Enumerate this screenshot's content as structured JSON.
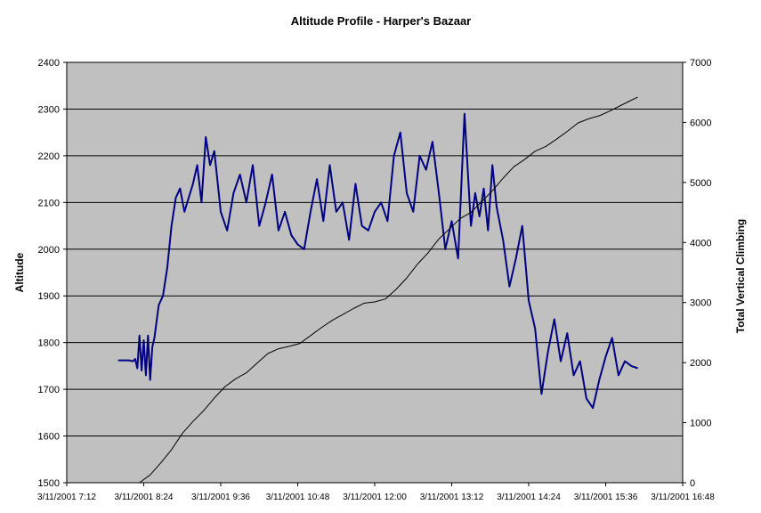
{
  "chart_data": {
    "type": "line",
    "title": "Altitude Profile - Harper's Bazaar",
    "ylabel": "Altitude",
    "y2label": "Total Vertical Climbing",
    "ylim": [
      1500,
      2400
    ],
    "y2lim": [
      0,
      7000
    ],
    "xlim": [
      "3/11/2001 7:12",
      "3/11/2001 16:48"
    ],
    "x_ticks": [
      "3/11/2001 7:12",
      "3/11/2001 8:24",
      "3/11/2001 9:36",
      "3/11/2001 10:48",
      "3/11/2001 12:00",
      "3/11/2001 13:12",
      "3/11/2001 14:24",
      "3/11/2001 15:36",
      "3/11/2001 16:48"
    ],
    "y_ticks": [
      1500,
      1600,
      1700,
      1800,
      1900,
      2000,
      2100,
      2200,
      2300,
      2400
    ],
    "y2_ticks": [
      0,
      1000,
      2000,
      3000,
      4000,
      5000,
      6000,
      7000
    ],
    "grid": true,
    "legend": "none",
    "colors": {
      "plot_bg": "#c0c0c0",
      "altitude": "#000080",
      "climbing": "#000000",
      "grid": "#000000"
    },
    "series": [
      {
        "axis": "left",
        "x": [
          "3/11/2001 8:00",
          "3/11/2001 8:10",
          "3/11/2001 8:14",
          "3/11/2001 8:16",
          "3/11/2001 8:18",
          "3/11/2001 8:20",
          "3/11/2001 8:22",
          "3/11/2001 8:24",
          "3/11/2001 8:26",
          "3/11/2001 8:28",
          "3/11/2001 8:30",
          "3/11/2001 8:32",
          "3/11/2001 8:34",
          "3/11/2001 8:38",
          "3/11/2001 8:42",
          "3/11/2001 8:46",
          "3/11/2001 8:50",
          "3/11/2001 8:54",
          "3/11/2001 8:58",
          "3/11/2001 9:02",
          "3/11/2001 9:06",
          "3/11/2001 9:10",
          "3/11/2001 9:14",
          "3/11/2001 9:18",
          "3/11/2001 9:22",
          "3/11/2001 9:26",
          "3/11/2001 9:30",
          "3/11/2001 9:36",
          "3/11/2001 9:42",
          "3/11/2001 9:48",
          "3/11/2001 9:54",
          "3/11/2001 10:00",
          "3/11/2001 10:06",
          "3/11/2001 10:12",
          "3/11/2001 10:18",
          "3/11/2001 10:24",
          "3/11/2001 10:30",
          "3/11/2001 10:36",
          "3/11/2001 10:42",
          "3/11/2001 10:48",
          "3/11/2001 10:54",
          "3/11/2001 11:00",
          "3/11/2001 11:06",
          "3/11/2001 11:12",
          "3/11/2001 11:18",
          "3/11/2001 11:24",
          "3/11/2001 11:30",
          "3/11/2001 11:36",
          "3/11/2001 11:42",
          "3/11/2001 11:48",
          "3/11/2001 11:54",
          "3/11/2001 12:00",
          "3/11/2001 12:06",
          "3/11/2001 12:12",
          "3/11/2001 12:18",
          "3/11/2001 12:24",
          "3/11/2001 12:30",
          "3/11/2001 12:36",
          "3/11/2001 12:42",
          "3/11/2001 12:48",
          "3/11/2001 12:54",
          "3/11/2001 13:00",
          "3/11/2001 13:06",
          "3/11/2001 13:12",
          "3/11/2001 13:18",
          "3/11/2001 13:24",
          "3/11/2001 13:30",
          "3/11/2001 13:34",
          "3/11/2001 13:38",
          "3/11/2001 13:42",
          "3/11/2001 13:46",
          "3/11/2001 13:50",
          "3/11/2001 13:54",
          "3/11/2001 14:00",
          "3/11/2001 14:06",
          "3/11/2001 14:12",
          "3/11/2001 14:18",
          "3/11/2001 14:24",
          "3/11/2001 14:30",
          "3/11/2001 14:36",
          "3/11/2001 14:42",
          "3/11/2001 14:48",
          "3/11/2001 14:54",
          "3/11/2001 15:00",
          "3/11/2001 15:06",
          "3/11/2001 15:12",
          "3/11/2001 15:18",
          "3/11/2001 15:24",
          "3/11/2001 15:30",
          "3/11/2001 15:36",
          "3/11/2001 15:42",
          "3/11/2001 15:48",
          "3/11/2001 15:54",
          "3/11/2001 16:00",
          "3/11/2001 16:06"
        ],
        "values": [
          1762,
          1762,
          1760,
          1765,
          1745,
          1815,
          1740,
          1805,
          1730,
          1815,
          1720,
          1790,
          1810,
          1880,
          1900,
          1960,
          2050,
          2110,
          2130,
          2080,
          2110,
          2140,
          2180,
          2100,
          2240,
          2180,
          2210,
          2080,
          2040,
          2120,
          2160,
          2100,
          2180,
          2050,
          2100,
          2160,
          2040,
          2080,
          2030,
          2010,
          2000,
          2080,
          2150,
          2060,
          2180,
          2080,
          2100,
          2020,
          2140,
          2050,
          2040,
          2080,
          2100,
          2060,
          2200,
          2250,
          2120,
          2080,
          2200,
          2170,
          2230,
          2120,
          2000,
          2060,
          1980,
          2290,
          2050,
          2120,
          2070,
          2130,
          2040,
          2180,
          2090,
          2020,
          1920,
          1980,
          2050,
          1890,
          1830,
          1690,
          1780,
          1850,
          1760,
          1820,
          1730,
          1760,
          1680,
          1660,
          1720,
          1770,
          1810,
          1730,
          1760,
          1750,
          1745
        ]
      },
      {
        "axis": "right",
        "x": [
          "3/11/2001 8:20",
          "3/11/2001 8:30",
          "3/11/2001 8:40",
          "3/11/2001 8:50",
          "3/11/2001 9:00",
          "3/11/2001 9:10",
          "3/11/2001 9:20",
          "3/11/2001 9:30",
          "3/11/2001 9:40",
          "3/11/2001 9:50",
          "3/11/2001 10:00",
          "3/11/2001 10:10",
          "3/11/2001 10:20",
          "3/11/2001 10:30",
          "3/11/2001 10:40",
          "3/11/2001 10:50",
          "3/11/2001 11:00",
          "3/11/2001 11:10",
          "3/11/2001 11:20",
          "3/11/2001 11:30",
          "3/11/2001 11:40",
          "3/11/2001 11:50",
          "3/11/2001 12:00",
          "3/11/2001 12:10",
          "3/11/2001 12:20",
          "3/11/2001 12:30",
          "3/11/2001 12:40",
          "3/11/2001 12:50",
          "3/11/2001 13:00",
          "3/11/2001 13:10",
          "3/11/2001 13:20",
          "3/11/2001 13:30",
          "3/11/2001 13:40",
          "3/11/2001 13:50",
          "3/11/2001 14:00",
          "3/11/2001 14:10",
          "3/11/2001 14:20",
          "3/11/2001 14:30",
          "3/11/2001 14:40",
          "3/11/2001 14:50",
          "3/11/2001 15:00",
          "3/11/2001 15:10",
          "3/11/2001 15:20",
          "3/11/2001 15:30",
          "3/11/2001 15:40",
          "3/11/2001 15:50",
          "3/11/2001 16:00",
          "3/11/2001 16:06"
        ],
        "values": [
          0,
          130,
          330,
          550,
          820,
          1020,
          1200,
          1410,
          1600,
          1730,
          1830,
          1990,
          2150,
          2230,
          2270,
          2320,
          2450,
          2580,
          2700,
          2800,
          2900,
          2990,
          3010,
          3060,
          3220,
          3410,
          3640,
          3830,
          4060,
          4230,
          4400,
          4500,
          4680,
          4860,
          5070,
          5260,
          5380,
          5520,
          5600,
          5720,
          5850,
          5990,
          6060,
          6110,
          6190,
          6280,
          6370,
          6420
        ]
      }
    ]
  }
}
